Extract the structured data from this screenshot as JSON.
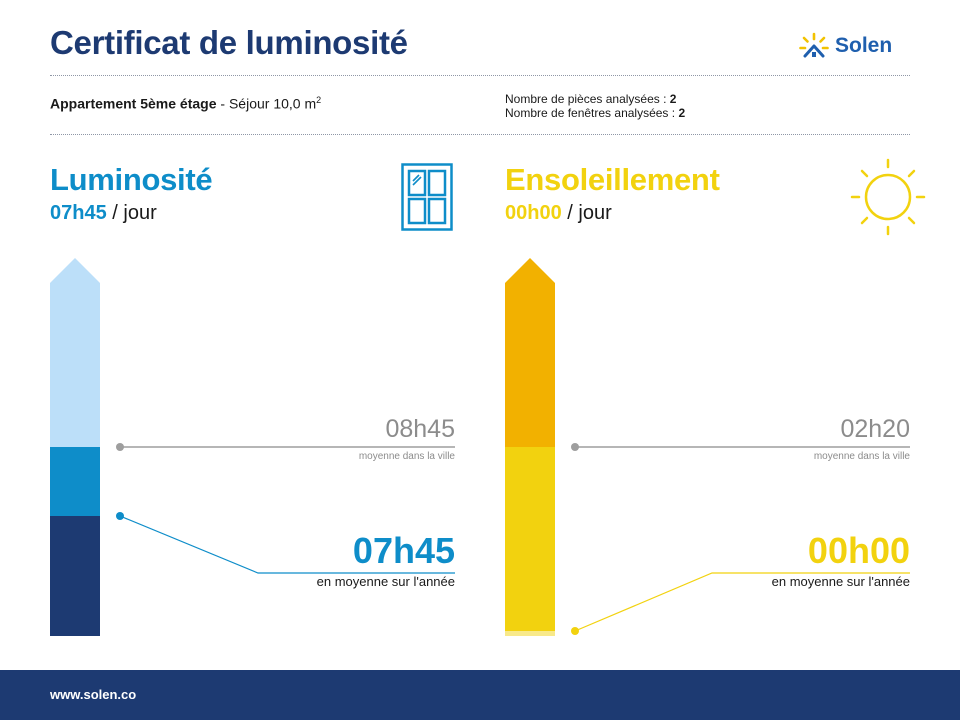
{
  "header": {
    "title": "Certificat de luminosité",
    "logo_text": "Solen"
  },
  "property": {
    "name": "Appartement 5ème étage",
    "separator": " - ",
    "room": "Séjour 10,0 m",
    "unit_exponent": "2",
    "rooms_label": "Nombre de pièces analysées : ",
    "rooms_value": "2",
    "windows_label": "Nombre de fenêtres analysées : ",
    "windows_value": "2"
  },
  "luminosity": {
    "title": "Luminosité",
    "per_day_value": "07h45",
    "per_day_unit": " / jour",
    "city_average": "08h45",
    "city_caption": "moyenne dans la ville",
    "year_average": "07h45",
    "year_caption": "en moyenne sur l'année",
    "icon": "window-icon",
    "scale_max_hours": 16,
    "city_hours": 8.75,
    "year_hours": 7.75,
    "colors": {
      "accent": "#0e8dc9",
      "light": "#bcdff9",
      "mid": "#0e8dc9",
      "dark": "#1d3a72"
    }
  },
  "sunshine": {
    "title": "Ensoleillement",
    "per_day_value": "00h00",
    "per_day_unit": " / jour",
    "city_average": "02h20",
    "city_caption": "moyenne dans la ville",
    "year_average": "00h00",
    "year_caption": "en moyenne sur l'année",
    "icon": "sun-icon",
    "colors": {
      "accent": "#f2d20f",
      "top": "#f2b100",
      "mid": "#f2d20f",
      "base": "#f8e98a"
    }
  },
  "footer": {
    "url": "www.solen.co"
  }
}
